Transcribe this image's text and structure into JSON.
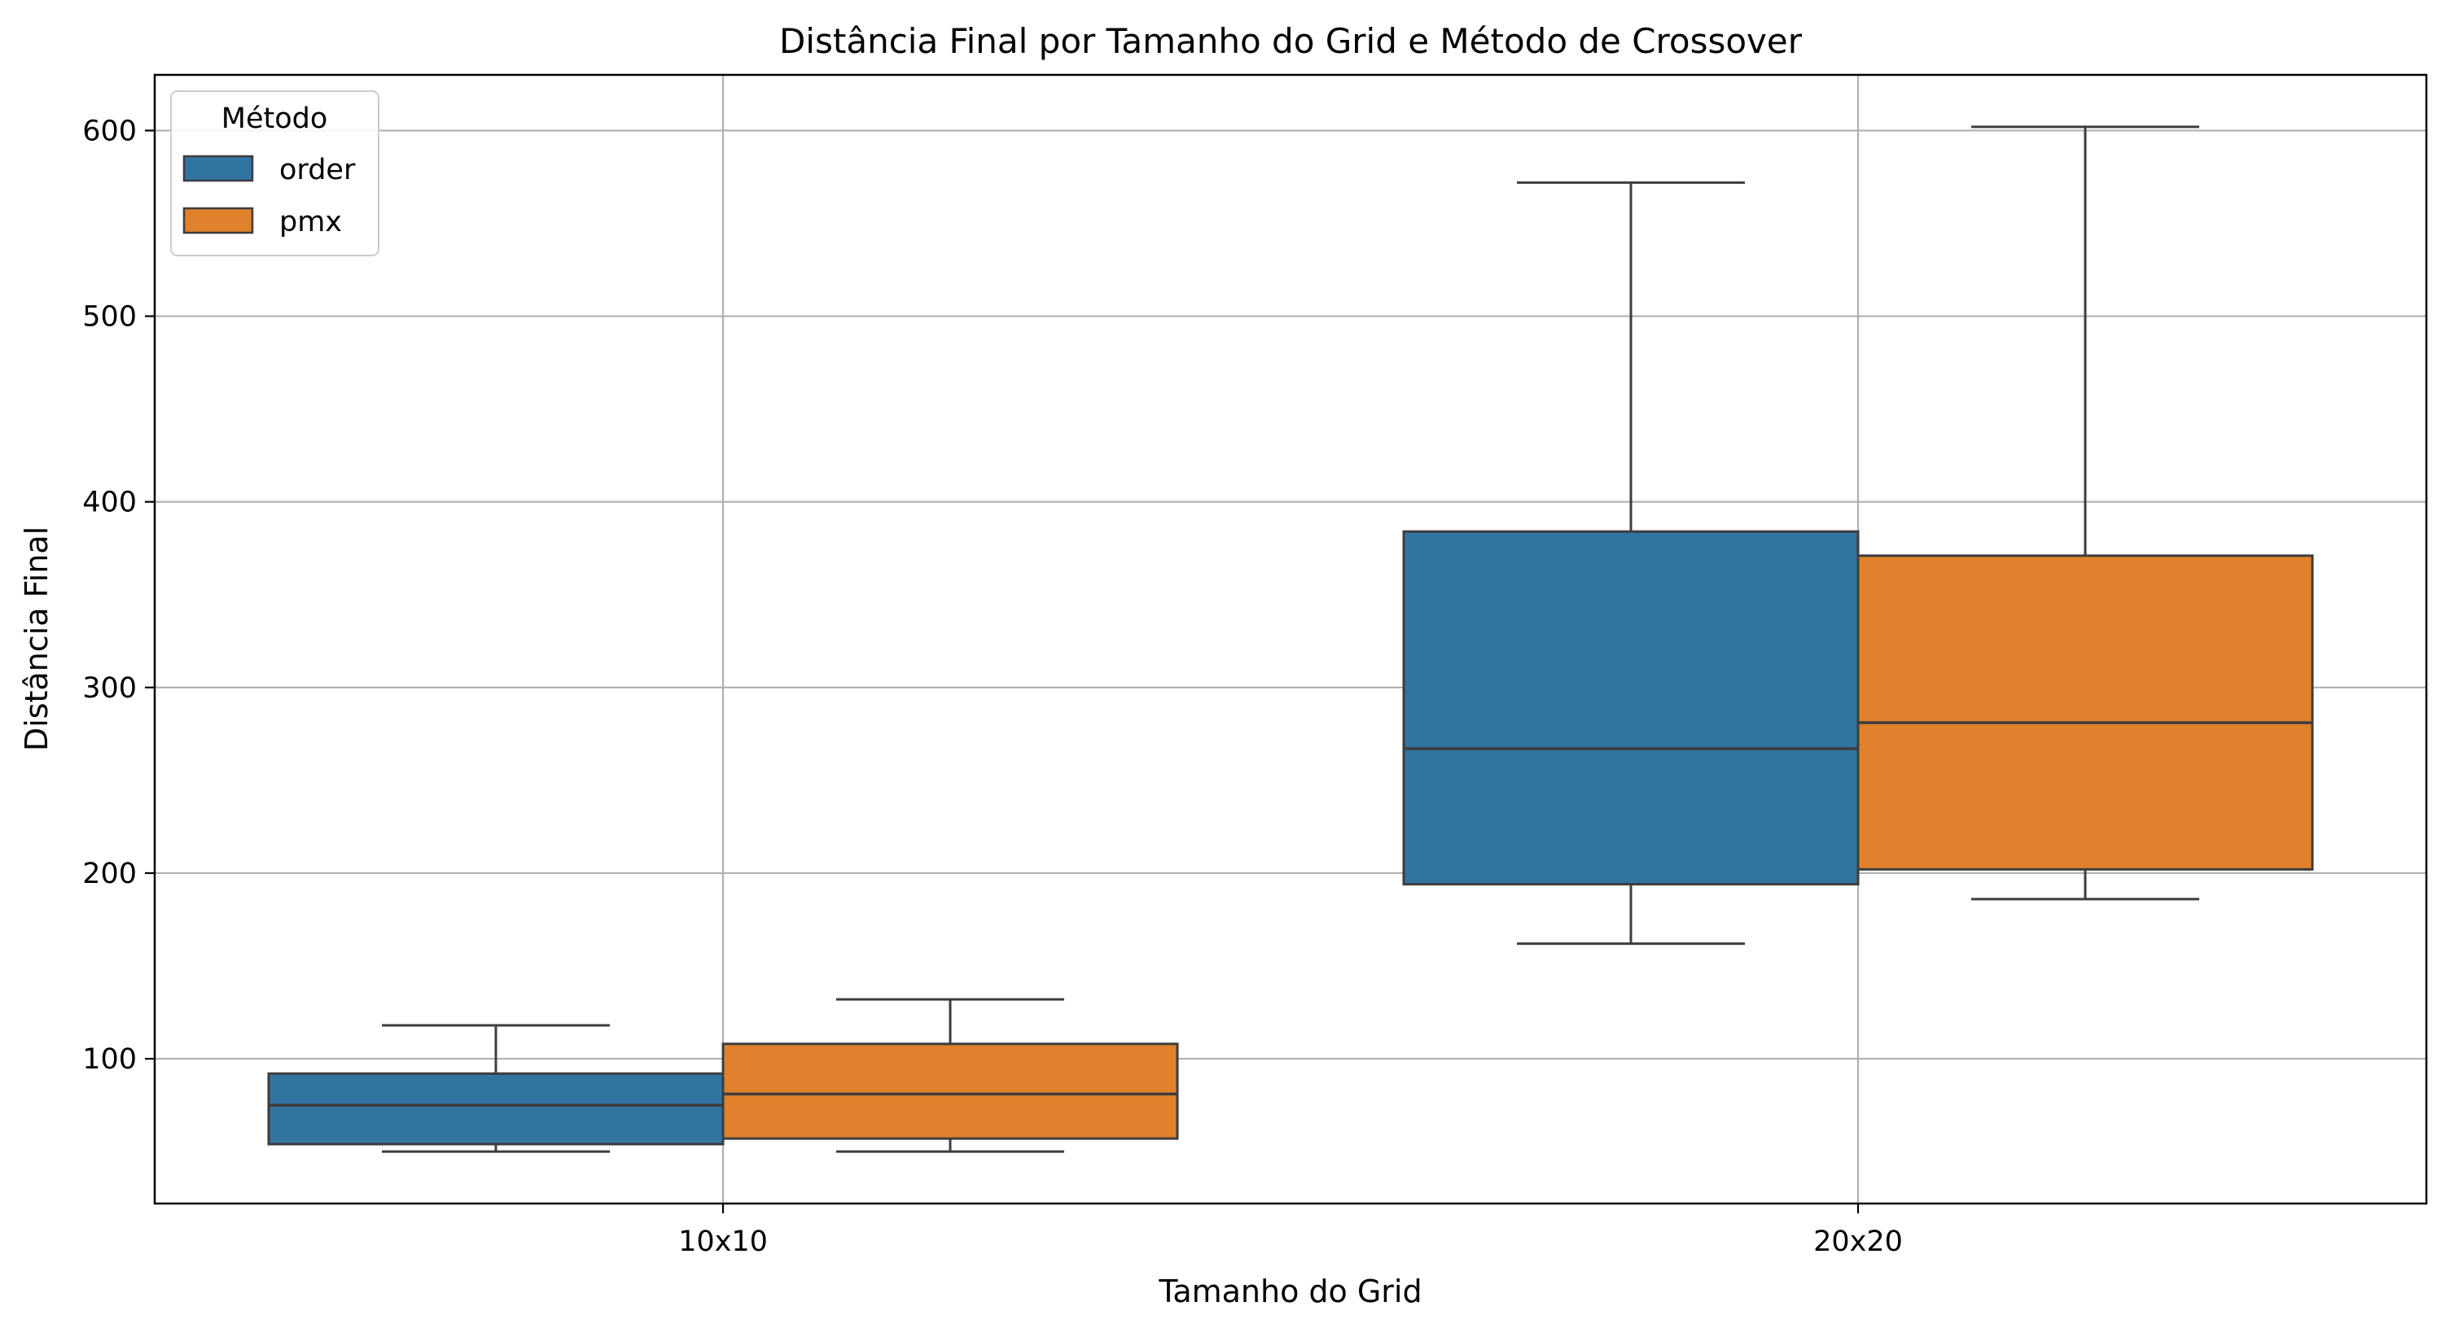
{
  "colors": {
    "order": "#3274a1",
    "pmx": "#e1812c",
    "edge": "#3d3d3d",
    "grid": "#b0b0b0",
    "axes": "#000000"
  },
  "chart_data": {
    "type": "box",
    "title": "Distância Final por Tamanho do Grid e Método de Crossover",
    "xlabel": "Tamanho do Grid",
    "ylabel": "Distância Final",
    "categories": [
      "10x10",
      "20x20"
    ],
    "ylim": [
      22,
      630
    ],
    "yticks": [
      100,
      200,
      300,
      400,
      500,
      600
    ],
    "grid": true,
    "legend": {
      "title": "Método",
      "placement": "top-left"
    },
    "series": [
      {
        "name": "order",
        "color": "#3274a1",
        "boxes": [
          {
            "category": "10x10",
            "whisker_low": 50,
            "q1": 54,
            "median": 75,
            "q3": 92,
            "whisker_high": 118
          },
          {
            "category": "20x20",
            "whisker_low": 162,
            "q1": 194,
            "median": 267,
            "q3": 384,
            "whisker_high": 572
          }
        ]
      },
      {
        "name": "pmx",
        "color": "#e1812c",
        "boxes": [
          {
            "category": "10x10",
            "whisker_low": 50,
            "q1": 57,
            "median": 81,
            "q3": 108,
            "whisker_high": 132
          },
          {
            "category": "20x20",
            "whisker_low": 186,
            "q1": 202,
            "median": 281,
            "q3": 371,
            "whisker_high": 602
          }
        ]
      }
    ]
  }
}
